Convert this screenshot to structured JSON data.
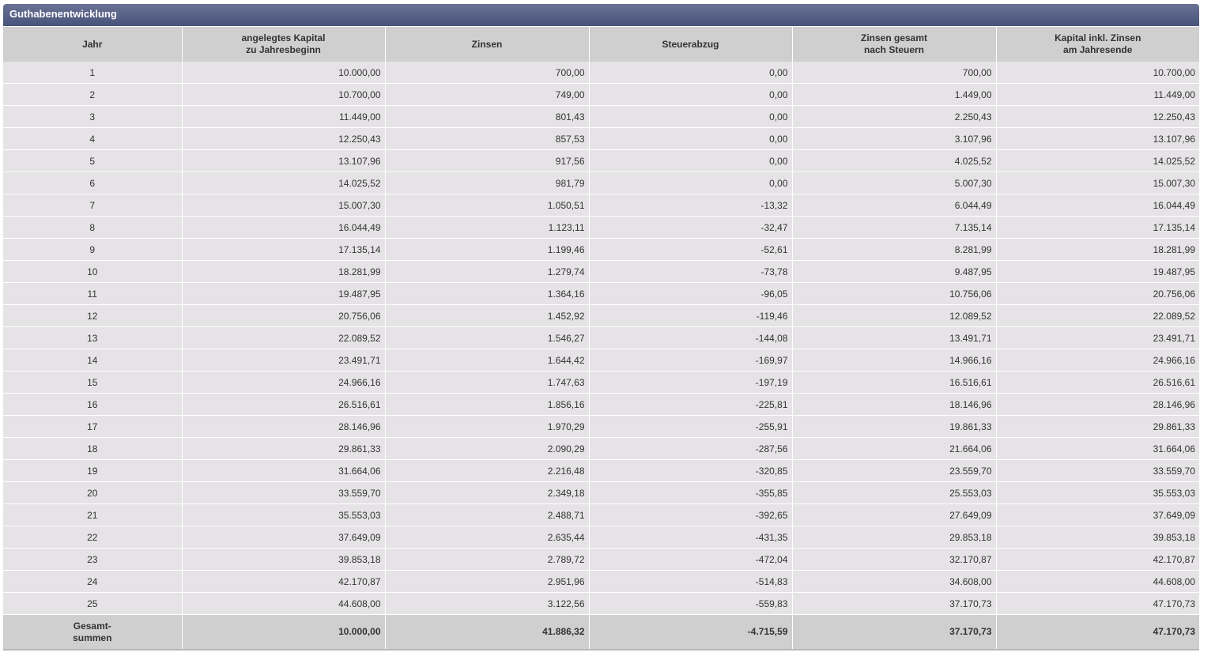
{
  "panel": {
    "title": "Guthabenentwicklung"
  },
  "table": {
    "headers": [
      {
        "line1": "Jahr",
        "line2": ""
      },
      {
        "line1": "angelegtes Kapital",
        "line2": "zu Jahresbeginn"
      },
      {
        "line1": "Zinsen",
        "line2": ""
      },
      {
        "line1": "Steuerabzug",
        "line2": ""
      },
      {
        "line1": "Zinsen gesamt",
        "line2": "nach Steuern"
      },
      {
        "line1": "Kapital inkl. Zinsen",
        "line2": "am Jahresende"
      }
    ],
    "rows": [
      [
        "1",
        "10.000,00",
        "700,00",
        "0,00",
        "700,00",
        "10.700,00"
      ],
      [
        "2",
        "10.700,00",
        "749,00",
        "0,00",
        "1.449,00",
        "11.449,00"
      ],
      [
        "3",
        "11.449,00",
        "801,43",
        "0,00",
        "2.250,43",
        "12.250,43"
      ],
      [
        "4",
        "12.250,43",
        "857,53",
        "0,00",
        "3.107,96",
        "13.107,96"
      ],
      [
        "5",
        "13.107,96",
        "917,56",
        "0,00",
        "4.025,52",
        "14.025,52"
      ],
      [
        "6",
        "14.025,52",
        "981,79",
        "0,00",
        "5.007,30",
        "15.007,30"
      ],
      [
        "7",
        "15.007,30",
        "1.050,51",
        "-13,32",
        "6.044,49",
        "16.044,49"
      ],
      [
        "8",
        "16.044,49",
        "1.123,11",
        "-32,47",
        "7.135,14",
        "17.135,14"
      ],
      [
        "9",
        "17.135,14",
        "1.199,46",
        "-52,61",
        "8.281,99",
        "18.281,99"
      ],
      [
        "10",
        "18.281,99",
        "1.279,74",
        "-73,78",
        "9.487,95",
        "19.487,95"
      ],
      [
        "11",
        "19.487,95",
        "1.364,16",
        "-96,05",
        "10.756,06",
        "20.756,06"
      ],
      [
        "12",
        "20.756,06",
        "1.452,92",
        "-119,46",
        "12.089,52",
        "22.089,52"
      ],
      [
        "13",
        "22.089,52",
        "1.546,27",
        "-144,08",
        "13.491,71",
        "23.491,71"
      ],
      [
        "14",
        "23.491,71",
        "1.644,42",
        "-169,97",
        "14.966,16",
        "24.966,16"
      ],
      [
        "15",
        "24.966,16",
        "1.747,63",
        "-197,19",
        "16.516,61",
        "26.516,61"
      ],
      [
        "16",
        "26.516,61",
        "1.856,16",
        "-225,81",
        "18.146,96",
        "28.146,96"
      ],
      [
        "17",
        "28.146,96",
        "1.970,29",
        "-255,91",
        "19.861,33",
        "29.861,33"
      ],
      [
        "18",
        "29.861,33",
        "2.090,29",
        "-287,56",
        "21.664,06",
        "31.664,06"
      ],
      [
        "19",
        "31.664,06",
        "2.216,48",
        "-320,85",
        "23.559,70",
        "33.559,70"
      ],
      [
        "20",
        "33.559,70",
        "2.349,18",
        "-355,85",
        "25.553,03",
        "35.553,03"
      ],
      [
        "21",
        "35.553,03",
        "2.488,71",
        "-392,65",
        "27.649,09",
        "37.649,09"
      ],
      [
        "22",
        "37.649,09",
        "2.635,44",
        "-431,35",
        "29.853,18",
        "39.853,18"
      ],
      [
        "23",
        "39.853,18",
        "2.789,72",
        "-472,04",
        "32.170,87",
        "42.170,87"
      ],
      [
        "24",
        "42.170,87",
        "2.951,96",
        "-514,83",
        "34.608,00",
        "44.608,00"
      ],
      [
        "25",
        "44.608,00",
        "3.122,56",
        "-559,83",
        "37.170,73",
        "47.170,73"
      ]
    ],
    "totals": {
      "label_line1": "Gesamt-",
      "label_line2": "summen",
      "values": [
        "10.000,00",
        "41.886,32",
        "-4.715,59",
        "37.170,73",
        "47.170,73"
      ]
    }
  }
}
